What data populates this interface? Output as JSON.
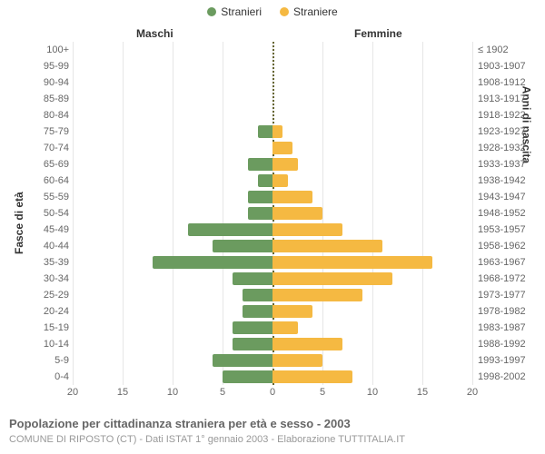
{
  "legend": {
    "male": {
      "label": "Stranieri",
      "color": "#6b9b5f"
    },
    "female": {
      "label": "Straniere",
      "color": "#f5b942"
    }
  },
  "headers": {
    "male": "Maschi",
    "female": "Femmine"
  },
  "axis_titles": {
    "left": "Fasce di età",
    "right": "Anni di nascita"
  },
  "chart": {
    "type": "population-pyramid",
    "xmax": 20,
    "xtick_step": 5,
    "grid_color": "#e6e6e6",
    "centerline_color": "#666633",
    "background_color": "#ffffff",
    "label_color": "#666666",
    "label_fontsize": 11
  },
  "x_ticks_left": [
    20,
    15,
    10,
    5,
    0
  ],
  "x_ticks_right": [
    0,
    5,
    10,
    15,
    20
  ],
  "rows": [
    {
      "age": "100+",
      "birth": "≤ 1902",
      "m": 0,
      "f": 0
    },
    {
      "age": "95-99",
      "birth": "1903-1907",
      "m": 0,
      "f": 0
    },
    {
      "age": "90-94",
      "birth": "1908-1912",
      "m": 0,
      "f": 0
    },
    {
      "age": "85-89",
      "birth": "1913-1917",
      "m": 0,
      "f": 0
    },
    {
      "age": "80-84",
      "birth": "1918-1922",
      "m": 0,
      "f": 0
    },
    {
      "age": "75-79",
      "birth": "1923-1927",
      "m": 1.5,
      "f": 1
    },
    {
      "age": "70-74",
      "birth": "1928-1932",
      "m": 0,
      "f": 2
    },
    {
      "age": "65-69",
      "birth": "1933-1937",
      "m": 2.5,
      "f": 2.5
    },
    {
      "age": "60-64",
      "birth": "1938-1942",
      "m": 1.5,
      "f": 1.5
    },
    {
      "age": "55-59",
      "birth": "1943-1947",
      "m": 2.5,
      "f": 4
    },
    {
      "age": "50-54",
      "birth": "1948-1952",
      "m": 2.5,
      "f": 5
    },
    {
      "age": "45-49",
      "birth": "1953-1957",
      "m": 8.5,
      "f": 7
    },
    {
      "age": "40-44",
      "birth": "1958-1962",
      "m": 6,
      "f": 11
    },
    {
      "age": "35-39",
      "birth": "1963-1967",
      "m": 12,
      "f": 16
    },
    {
      "age": "30-34",
      "birth": "1968-1972",
      "m": 4,
      "f": 12
    },
    {
      "age": "25-29",
      "birth": "1973-1977",
      "m": 3,
      "f": 9
    },
    {
      "age": "20-24",
      "birth": "1978-1982",
      "m": 3,
      "f": 4
    },
    {
      "age": "15-19",
      "birth": "1983-1987",
      "m": 4,
      "f": 2.5
    },
    {
      "age": "10-14",
      "birth": "1988-1992",
      "m": 4,
      "f": 7
    },
    {
      "age": "5-9",
      "birth": "1993-1997",
      "m": 6,
      "f": 5
    },
    {
      "age": "0-4",
      "birth": "1998-2002",
      "m": 5,
      "f": 8
    }
  ],
  "footer": {
    "title": "Popolazione per cittadinanza straniera per età e sesso - 2003",
    "sub": "COMUNE DI RIPOSTO (CT) - Dati ISTAT 1° gennaio 2003 - Elaborazione TUTTITALIA.IT"
  }
}
